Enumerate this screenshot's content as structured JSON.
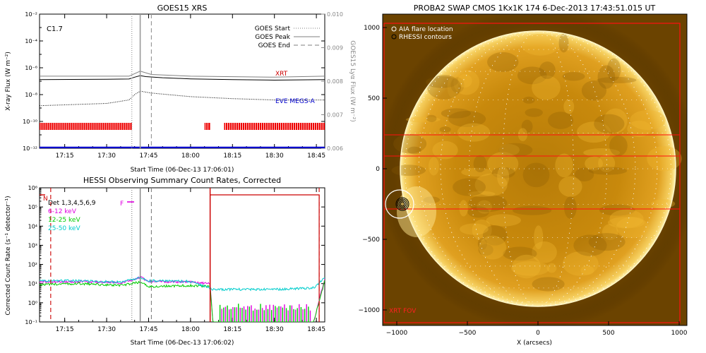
{
  "chart_data": [
    {
      "type": "line",
      "title": "GOES15 XRS",
      "ylabel": "X-ray Flux (W m⁻²)",
      "y2label": "GOES15 Lyα Flux (W m⁻²)",
      "xlabel": "Start Time (06-Dec-13 17:06:01)",
      "x_range": [
        "17:06",
        "18:48"
      ],
      "x_ticks": [
        "17:15",
        "17:30",
        "17:45",
        "18:00",
        "18:15",
        "18:30",
        "18:45"
      ],
      "y_scale": "log",
      "ylim": [
        1e-12,
        0.01
      ],
      "y_ticks": [
        "10⁻¹²",
        "10⁻¹⁰",
        "10⁻⁸",
        "10⁻⁶",
        "10⁻⁴",
        "10⁻²"
      ],
      "y2lim": [
        0.006,
        0.01
      ],
      "y2_ticks": [
        "0.006",
        "0.007",
        "0.008",
        "0.009",
        "0.010"
      ],
      "class_label": "C1.7",
      "legend": {
        "placement": "top-right",
        "entries": [
          {
            "label": "GOES Start",
            "style": "dotted"
          },
          {
            "label": "GOES Peak",
            "style": "solid"
          },
          {
            "label": "GOES End",
            "style": "dashed"
          }
        ]
      },
      "markers": [
        {
          "name": "GOES Start",
          "x": "17:39",
          "style": "dotted"
        },
        {
          "name": "GOES Peak",
          "x": "17:42",
          "style": "solid"
        },
        {
          "name": "GOES End",
          "x": "17:46",
          "style": "dashed"
        }
      ],
      "annotations": [
        {
          "text": "XRT",
          "color": "#cc0000"
        },
        {
          "text": "EVE MEGS-A",
          "color": "#0000cc"
        }
      ],
      "series": [
        {
          "color": "#000000",
          "style": "solid",
          "x": [
            "17:06",
            "17:30",
            "17:38",
            "17:40",
            "17:42",
            "17:44",
            "17:50",
            "18:00",
            "18:15",
            "18:30",
            "18:48"
          ],
          "y": [
            1.3e-07,
            1.4e-07,
            1.45e-07,
            2e-07,
            2.6e-07,
            2.2e-07,
            1.8e-07,
            1.5e-07,
            1.3e-07,
            1.2e-07,
            1.3e-07
          ]
        },
        {
          "color": "#808080",
          "style": "solid",
          "x": [
            "17:06",
            "17:38",
            "17:42",
            "17:46",
            "18:00",
            "18:30",
            "18:48"
          ],
          "y": [
            0.00815,
            0.00815,
            0.0083,
            0.0082,
            0.00815,
            0.00812,
            0.00815
          ]
        },
        {
          "color": "#000000",
          "style": "dotted",
          "x": [
            "17:06",
            "17:30",
            "17:38",
            "17:40",
            "17:42",
            "17:46",
            "18:00",
            "18:15",
            "18:30",
            "18:48"
          ],
          "y": [
            1.5e-09,
            2.2e-09,
            4e-09,
            1e-08,
            1.8e-08,
            1.3e-08,
            7e-09,
            5e-09,
            4e-09,
            4e-09
          ]
        },
        {
          "color": "#0000cc",
          "style": "solid",
          "x": [
            "17:06",
            "18:48"
          ],
          "y": [
            1.1e-12,
            1.1e-12
          ]
        }
      ],
      "xrt_coverage": {
        "color": "#ee0000",
        "intervals": [
          [
            "17:06",
            "17:39"
          ],
          [
            "18:05",
            "18:07"
          ],
          [
            "18:12",
            "18:48"
          ]
        ]
      }
    },
    {
      "type": "line",
      "title": "HESSI Observing Summary Count Rates, Corrected",
      "ylabel": "Corrected Count Rate (s⁻¹ detector⁻¹)",
      "xlabel": "Start Time (06-Dec-13 17:06:02)",
      "x_range": [
        "17:06",
        "18:48"
      ],
      "x_ticks": [
        "17:15",
        "17:30",
        "17:45",
        "18:00",
        "18:15",
        "18:30",
        "18:45"
      ],
      "y_scale": "log",
      "ylim": [
        0.1,
        1000000.0
      ],
      "y_ticks": [
        "10⁻¹",
        "10⁰",
        "10¹",
        "10²",
        "10³",
        "10⁴",
        "10⁵",
        "10⁶"
      ],
      "legend": {
        "placement": "top-left",
        "entries": [
          {
            "label": "Det 1,3,4,5,6,9",
            "color": "#000000"
          },
          {
            "label": "6-12 keV",
            "color": "#e000e0"
          },
          {
            "label": "12-25 keV",
            "color": "#00cc00"
          },
          {
            "label": "25-50 keV",
            "color": "#00cccc"
          }
        ]
      },
      "flags": [
        {
          "text": "N",
          "color": "#cc0000"
        },
        {
          "text": "F",
          "color": "#e000e0"
        }
      ],
      "series": [
        {
          "name": "6-12 keV",
          "color": "#e000e0",
          "x": [
            "17:06",
            "17:20",
            "17:35",
            "17:40",
            "17:42",
            "17:45",
            "18:00",
            "18:07",
            "18:08",
            "18:44",
            "18:48"
          ],
          "y": [
            12,
            13,
            11,
            16,
            22,
            13,
            12,
            10,
            0.1,
            0.1,
            18
          ]
        },
        {
          "name": "12-25 keV",
          "color": "#00cc00",
          "x": [
            "17:06",
            "17:20",
            "17:35",
            "17:42",
            "17:45",
            "18:00",
            "18:07",
            "18:08",
            "18:44",
            "18:48"
          ],
          "y": [
            9,
            10,
            8,
            12,
            7,
            8,
            7,
            0.1,
            0.1,
            14
          ]
        },
        {
          "name": "25-50 keV",
          "color": "#00cccc",
          "x": [
            "17:06",
            "17:20",
            "17:35",
            "17:42",
            "17:45",
            "18:00",
            "18:08",
            "18:30",
            "18:44",
            "18:48"
          ],
          "y": [
            14,
            14,
            12,
            20,
            14,
            13,
            5,
            5,
            6,
            20
          ]
        }
      ],
      "markers": [
        {
          "x": "17:10",
          "style": "dashed",
          "color": "#cc0000"
        },
        {
          "x": "17:39",
          "style": "dotted",
          "color": "#808080"
        },
        {
          "x": "17:42",
          "style": "solid",
          "color": "#808080"
        },
        {
          "x": "17:46",
          "style": "dashed",
          "color": "#808080"
        },
        {
          "x": "18:07",
          "style": "solid",
          "color": "#cc0000"
        },
        {
          "x": "18:46",
          "style": "dashed",
          "color": "#cc0000"
        }
      ],
      "night_interval": [
        "18:07",
        "18:46"
      ]
    },
    {
      "type": "image",
      "title": "PROBA2 SWAP CMOS 1Kx1K 174   6-Dec-2013 17:43:51.015 UT",
      "xlabel": "X (arcsecs)",
      "xlim": [
        -1100,
        1100
      ],
      "ylim": [
        -1100,
        1100
      ],
      "x_ticks": [
        "−1000",
        "−500",
        "0",
        "500",
        "1000"
      ],
      "y_ticks": [
        "1000",
        "500",
        "0",
        "−500",
        "−1000"
      ],
      "legend": [
        {
          "label": "AIA flare location",
          "symbol": "circle-white"
        },
        {
          "label": "RHESSI contours",
          "symbol": "circle-black"
        }
      ],
      "fov_label": "XRT FOV",
      "solar_radius_arcsec": 975,
      "flare_location": [
        -960,
        -250
      ]
    }
  ]
}
